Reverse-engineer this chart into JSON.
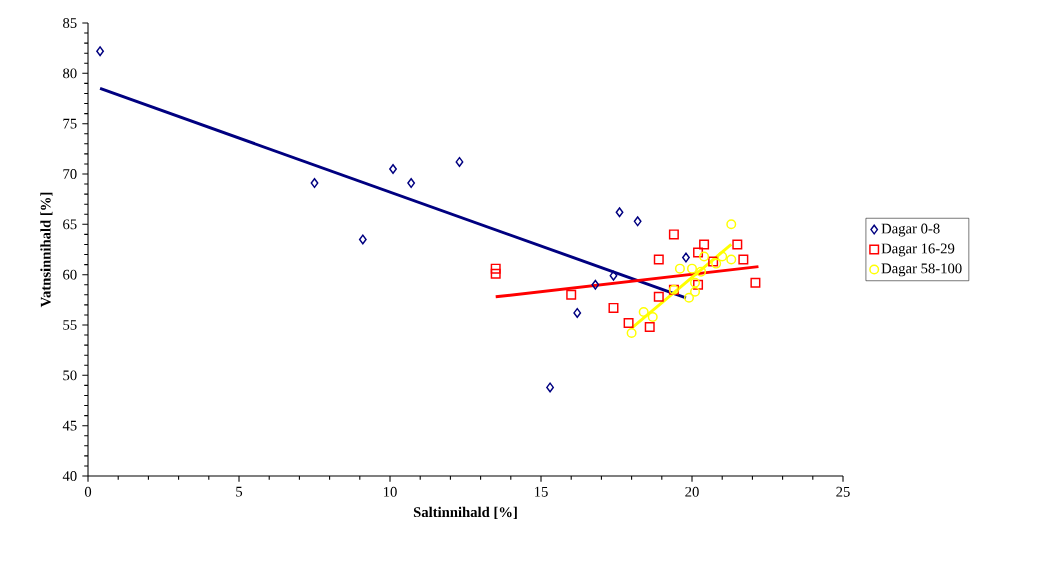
{
  "chart_data": {
    "type": "scatter",
    "xlabel": "Saltinnihald [%]",
    "ylabel": "Vatnsinnihald [%]",
    "xlim": [
      0,
      25
    ],
    "ylim": [
      40,
      85
    ],
    "xticks": [
      0,
      5,
      10,
      15,
      20,
      25
    ],
    "yticks": [
      40,
      45,
      50,
      55,
      60,
      65,
      70,
      75,
      80,
      85
    ],
    "legend": "right",
    "grid": false,
    "series": [
      {
        "name": "Dagar 0-8",
        "color": "#000080",
        "marker": "diamond",
        "x": [
          0.4,
          7.5,
          9.1,
          10.1,
          10.7,
          12.3,
          15.3,
          16.2,
          16.8,
          17.4,
          17.6,
          18.2,
          19.8
        ],
        "values": [
          82.2,
          69.1,
          63.5,
          70.5,
          69.1,
          71.2,
          48.8,
          56.2,
          59.0,
          59.9,
          66.2,
          65.3,
          61.7
        ]
      },
      {
        "name": "Dagar 16-29",
        "color": "#ff0000",
        "marker": "square",
        "x": [
          13.5,
          13.5,
          16.0,
          17.4,
          17.9,
          18.6,
          18.9,
          19.4,
          18.9,
          19.4,
          20.4,
          20.2,
          20.2,
          20.7,
          21.5,
          21.7,
          22.1
        ],
        "values": [
          60.6,
          60.1,
          58.0,
          56.7,
          55.2,
          54.8,
          57.8,
          58.5,
          61.5,
          64.0,
          63.0,
          62.2,
          59.0,
          61.3,
          63.0,
          61.5,
          59.2
        ]
      },
      {
        "name": "Dagar 58-100",
        "color": "#ffff00",
        "marker": "circle",
        "x": [
          18.0,
          18.4,
          18.7,
          19.4,
          19.9,
          20.1,
          20.1,
          19.6,
          20.0,
          20.3,
          20.4,
          20.8,
          21.0,
          21.3,
          21.3
        ],
        "values": [
          54.2,
          56.3,
          55.8,
          58.5,
          57.7,
          58.3,
          59.2,
          60.6,
          60.6,
          60.3,
          61.8,
          61.1,
          61.8,
          61.5,
          65.0
        ]
      },
      {
        "type": "line",
        "color": "#000080",
        "marker": "none",
        "x": [
          0.4,
          19.8
        ],
        "values": [
          78.5,
          57.7
        ]
      },
      {
        "type": "line",
        "color": "#ff0000",
        "marker": "none",
        "x": [
          13.5,
          22.2
        ],
        "values": [
          57.8,
          60.8
        ]
      },
      {
        "type": "line",
        "color": "#ffff00",
        "marker": "none",
        "x": [
          18.0,
          21.3
        ],
        "values": [
          54.7,
          63.0
        ]
      }
    ]
  }
}
